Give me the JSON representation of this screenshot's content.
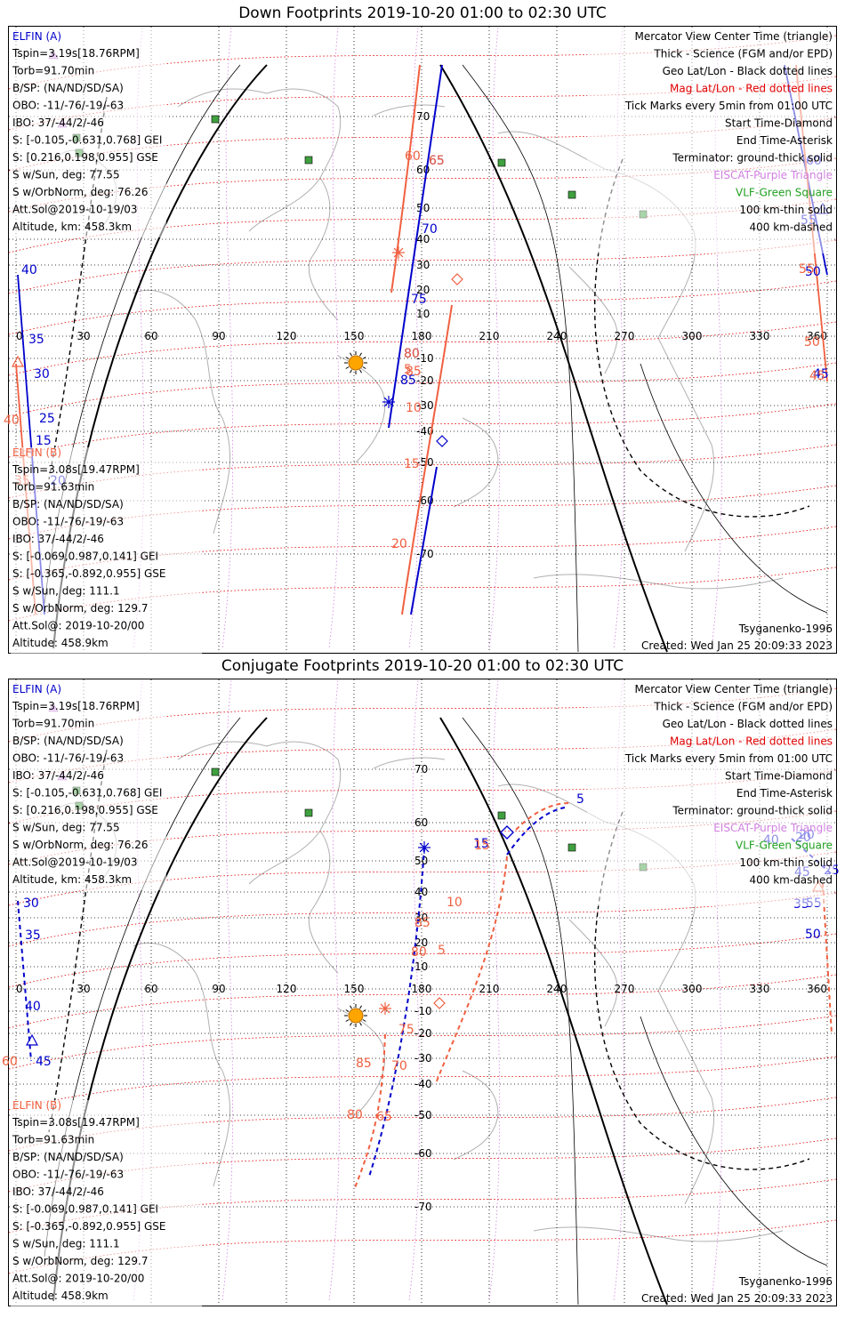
{
  "panels": [
    {
      "title": "Down Footprints 2019-10-20 01:00 to 02:30 UTC",
      "elfin_a": {
        "header": "ELFIN (A)",
        "lines": [
          "Tspin=3.19s[18.76RPM]",
          "Torb=91.70min",
          "B/SP: (NA/ND/SD/SA)",
          "OBO: -11/-76/-19/-63",
          "IBO: 37/-44/2/-46",
          "S: [-0.105,-0.631,0.768] GEI",
          "S: [0.216,0.198,0.955] GSE",
          "S w/Sun, deg: 77.55",
          "S w/OrbNorm, deg: 76.26",
          "Att.Sol@2019-10-19/03",
          "Altitude, km: 458.3km"
        ]
      },
      "elfin_b": {
        "header": "ELFIN (B)",
        "lines": [
          "Tspin=3.08s[19.47RPM]",
          "Torb=91.63min",
          "B/SP: (NA/ND/SD/SA)",
          "OBO: -11/-76/-19/-63",
          "IBO: 37/-44/2/-46",
          "S: [-0.069,0.987,0.141] GEI",
          "S: [-0.365,-0.892,0.955] GSE",
          "S w/Sun, deg: 111.1",
          "S w/OrbNorm, deg: 129.7",
          "Att.Sol@: 2019-10-20/00",
          "Altitude: 458.9km"
        ]
      },
      "legend": [
        {
          "text": "Mercator View Center Time (triangle)",
          "color": "#000000"
        },
        {
          "text": "Thick - Science (FGM and/or EPD)",
          "color": "#000000"
        },
        {
          "text": "Geo Lat/Lon - Black dotted lines",
          "color": "#000000"
        },
        {
          "text": "Mag Lat/Lon - Red dotted lines",
          "color": "#e00000"
        },
        {
          "text": "Tick Marks every 5min from 01:00 UTC",
          "color": "#000000"
        },
        {
          "text": "Start Time-Diamond",
          "color": "#000000"
        },
        {
          "text": "End Time-Asterisk",
          "color": "#000000"
        },
        {
          "text": "Terminator: ground-thick solid",
          "color": "#000000"
        },
        {
          "text": "EISCAT-Purple Triangle",
          "color": "#d080e0"
        },
        {
          "text": "VLF-Green Square",
          "color": "#20a020"
        },
        {
          "text": "100 km-thin solid",
          "color": "#000000"
        },
        {
          "text": "400 km-dashed",
          "color": "#000000"
        }
      ],
      "model": "Tsyganenko-1996",
      "created": "Created: Wed Jan 25 20:09:33 2023",
      "lon_ticks": [
        "0",
        "30",
        "60",
        "90",
        "120",
        "150",
        "180",
        "210",
        "240",
        "270",
        "300",
        "330",
        "360"
      ],
      "lat_ticks": [
        "70",
        "60",
        "50",
        "40",
        "30",
        "20",
        "10",
        "-10",
        "-20",
        "-30",
        "-40",
        "-50",
        "-60",
        "-70"
      ],
      "track_labels_a": [
        "40",
        "35",
        "30",
        "25",
        "20",
        "15",
        "65",
        "70",
        "75",
        "80",
        "85",
        "60",
        "55",
        "50",
        "45"
      ],
      "track_labels_b": [
        "40",
        "35",
        "30",
        "80",
        "85",
        "5",
        "10",
        "15",
        "20",
        "65",
        "60",
        "55",
        "50",
        "45"
      ]
    },
    {
      "title": "Conjugate Footprints 2019-10-20 01:00 to 02:30 UTC",
      "elfin_a": {
        "header": "ELFIN (A)",
        "lines": [
          "Tspin=3.19s[18.76RPM]",
          "Torb=91.70min",
          "B/SP: (NA/ND/SD/SA)",
          "OBO: -11/-76/-19/-63",
          "IBO: 37/-44/2/-46",
          "S: [-0.105,-0.631,0.768] GEI",
          "S: [0.216,0.198,0.955] GSE",
          "S w/Sun, deg: 77.55",
          "S w/OrbNorm, deg: 76.26",
          "Att.Sol@2019-10-19/03",
          "Altitude, km: 458.3km"
        ]
      },
      "elfin_b": {
        "header": "ELFIN (B)",
        "lines": [
          "Tspin=3.08s[19.47RPM]",
          "Torb=91.63min",
          "B/SP: (NA/ND/SD/SA)",
          "OBO: -11/-76/-19/-63",
          "IBO: 37/-44/2/-46",
          "S: [-0.069,0.987,0.141] GEI",
          "S: [-0.365,-0.892,0.955] GSE",
          "S w/Sun, deg: 111.1",
          "S w/OrbNorm, deg: 129.7",
          "Att.Sol@: 2019-10-20/00",
          "Altitude: 458.9km"
        ]
      },
      "legend": [
        {
          "text": "Mercator View Center Time (triangle)",
          "color": "#000000"
        },
        {
          "text": "Thick - Science (FGM and/or EPD)",
          "color": "#000000"
        },
        {
          "text": "Geo Lat/Lon - Black dotted lines",
          "color": "#000000"
        },
        {
          "text": "Mag Lat/Lon - Red dotted lines",
          "color": "#e00000"
        },
        {
          "text": "Tick Marks every 5min from 01:00 UTC",
          "color": "#000000"
        },
        {
          "text": "Start Time-Diamond",
          "color": "#000000"
        },
        {
          "text": "End Time-Asterisk",
          "color": "#000000"
        },
        {
          "text": "Terminator: ground-thick solid",
          "color": "#000000"
        },
        {
          "text": "EISCAT-Purple Triangle",
          "color": "#d080e0"
        },
        {
          "text": "VLF-Green Square",
          "color": "#20a020"
        },
        {
          "text": "100 km-thin solid",
          "color": "#000000"
        },
        {
          "text": "400 km-dashed",
          "color": "#000000"
        }
      ],
      "model": "Tsyganenko-1996",
      "created": "Created: Wed Jan 25 20:09:33 2023",
      "lon_ticks": [
        "0",
        "30",
        "60",
        "90",
        "120",
        "150",
        "180",
        "210",
        "240",
        "270",
        "300",
        "330",
        "360"
      ],
      "lat_ticks": [
        "70",
        "60",
        "50",
        "40",
        "30",
        "20",
        "10",
        "-10",
        "-20",
        "-30",
        "-40",
        "-50",
        "-60",
        "-70"
      ],
      "track_labels_a": [
        "30",
        "35",
        "40",
        "45",
        "5",
        "15",
        "20",
        "55",
        "50",
        "45",
        "40",
        "35",
        "20",
        "25"
      ],
      "track_labels_b": [
        "60",
        "75",
        "85",
        "80",
        "70",
        "65",
        "85",
        "80",
        "10",
        "5",
        "15"
      ]
    }
  ],
  "colors": {
    "elfin_a": "#0000cc",
    "elfin_b": "#f06040",
    "mag_grid": "#e00000",
    "geo_grid": "#000000",
    "eiscat": "#d080e0",
    "vlf": "#40a040",
    "sun": "#ffa500",
    "coast": "#b0b0b0"
  },
  "markers": {
    "sun_icon": "sun-icon",
    "vlf_station_icon": "green-square-icon",
    "eiscat_icon": "purple-triangle-icon"
  }
}
